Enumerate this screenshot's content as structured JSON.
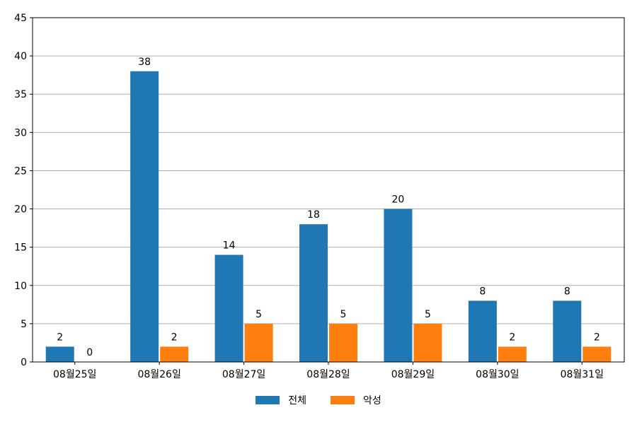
{
  "chart_data": {
    "type": "bar",
    "categories": [
      "08월25일",
      "08월26일",
      "08월27일",
      "08월28일",
      "08월29일",
      "08월30일",
      "08월31일"
    ],
    "series": [
      {
        "name": "전체",
        "values": [
          2,
          38,
          14,
          18,
          20,
          8,
          8
        ],
        "color": "#1f77b4"
      },
      {
        "name": "악성",
        "values": [
          0,
          2,
          5,
          5,
          5,
          2,
          2
        ],
        "color": "#ff7f0e"
      }
    ],
    "ylim": [
      0,
      45
    ],
    "yticks": [
      0,
      5,
      10,
      15,
      20,
      25,
      30,
      35,
      40,
      45
    ],
    "grid": true,
    "legend_position": "bottom-center",
    "data_labels": true
  }
}
